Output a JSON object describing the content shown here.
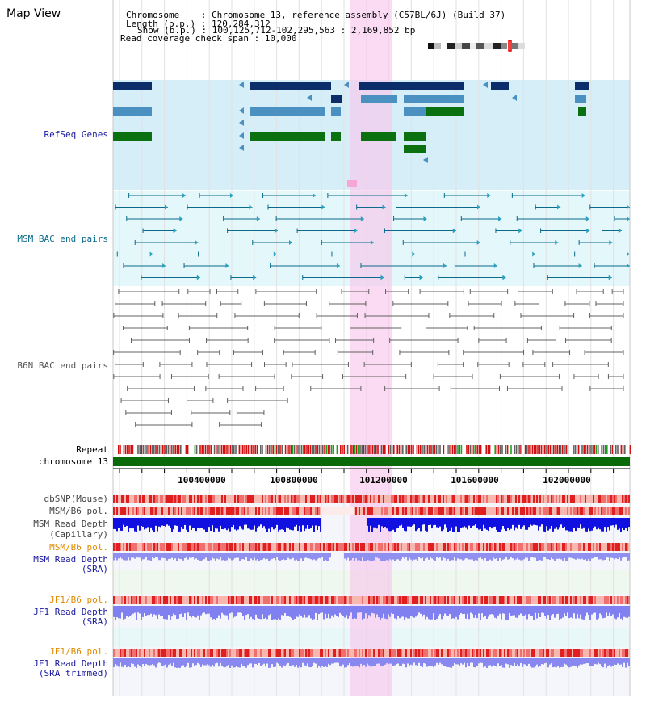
{
  "view_title": "Map View",
  "chromosome_info": {
    "chromosome": "Chromosome    : Chromosome 13, reference assembly (C57BL/6J) (Build 37)",
    "length": "Length (b.p.) : 120,284,312",
    "show": "Show (b.p.) : 100,125,712-102,295,563 : 2,169,852 bp",
    "coverage": "Read coverage check span : 10,000"
  },
  "tracks": {
    "refseq": "RefSeq Genes",
    "msm_bac": "MSM BAC end pairs",
    "b6n_bac": "B6N BAC end pairs",
    "repeat": "Repeat",
    "chromosome": "chromosome 13",
    "dbsnp": "dbSNP(Mouse)",
    "msm_b6_pol_1": "MSM/B6 pol.",
    "msm_read_depth_cap_1": "MSM Read Depth",
    "msm_read_depth_cap_2": "(Capillary)",
    "msm_b6_pol_2": "MSM/B6 pol.",
    "msm_read_depth_sra_1": "MSM Read Depth",
    "msm_read_depth_sra_2": "(SRA)",
    "jf1_b6_pol_1": "JF1/B6 pol.",
    "jf1_read_depth_sra_1": "JF1 Read Depth",
    "jf1_read_depth_sra_2": "(SRA)",
    "jf1_b6_pol_2": "JF1/B6 pol.",
    "jf1_read_depth_trim_1": "JF1 Read Depth",
    "jf1_read_depth_trim_2": "(SRA trimmed)"
  },
  "axis": {
    "ticks": [
      "100400000",
      "100800000",
      "101200000",
      "101600000",
      "102000000"
    ]
  },
  "colors": {
    "refseq_dark": "#0b2e6b",
    "refseq_mid": "#4a90c0",
    "refseq_green": "#0a7010",
    "bac_msm": "#0a6a8a",
    "bac_b6n": "#606060",
    "highlight": "#f8c8ec",
    "label_blue": "#1a1aa0",
    "label_orange": "#e08a00"
  }
}
